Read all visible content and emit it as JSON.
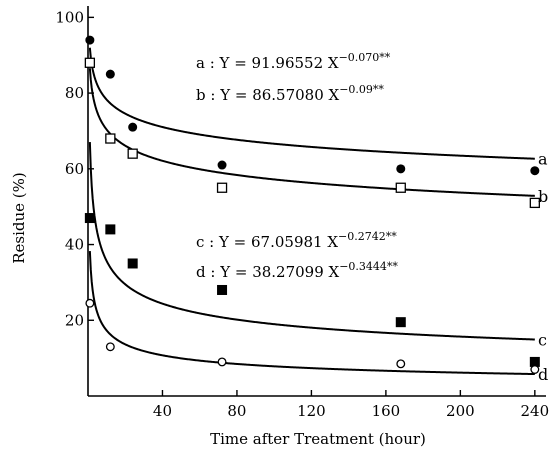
{
  "chart_data": {
    "type": "scatter",
    "xlabel": "Time after Treatment (hour)",
    "ylabel": "Residue (%)",
    "xlim": [
      0,
      246
    ],
    "ylim": [
      0,
      103
    ],
    "xticks": [
      40,
      80,
      120,
      160,
      200,
      240
    ],
    "yticks": [
      20,
      40,
      60,
      80,
      100
    ],
    "grid": false,
    "series": [
      {
        "name": "a",
        "marker": "filled-circle",
        "coef": 91.96552,
        "exp": -0.07,
        "eq_text": "a : Y = 91.96552 X",
        "eq_exp": "−0.070**",
        "points": [
          [
            1,
            94
          ],
          [
            12,
            85
          ],
          [
            24,
            71
          ],
          [
            72,
            61
          ],
          [
            168,
            60
          ],
          [
            240,
            59.5
          ]
        ]
      },
      {
        "name": "b",
        "marker": "open-square",
        "coef": 86.5708,
        "exp": -0.09,
        "eq_text": "b : Y = 86.57080 X",
        "eq_exp": "−0.09**",
        "points": [
          [
            1,
            88
          ],
          [
            12,
            68
          ],
          [
            24,
            64
          ],
          [
            72,
            55
          ],
          [
            168,
            55
          ],
          [
            240,
            51
          ]
        ]
      },
      {
        "name": "c",
        "marker": "filled-square",
        "coef": 67.05981,
        "exp": -0.2742,
        "eq_text": "c : Y = 67.05981 X",
        "eq_exp": "−0.2742**",
        "points": [
          [
            1,
            47
          ],
          [
            12,
            44
          ],
          [
            24,
            35
          ],
          [
            72,
            28
          ],
          [
            168,
            19.5
          ],
          [
            240,
            9
          ]
        ]
      },
      {
        "name": "d",
        "marker": "open-circle",
        "coef": 38.27099,
        "exp": -0.3444,
        "eq_text": "d : Y = 38.27099 X",
        "eq_exp": "−0.3444**",
        "points": [
          [
            1,
            24.5
          ],
          [
            12,
            13
          ],
          [
            72,
            9
          ],
          [
            168,
            8.5
          ],
          [
            240,
            7
          ]
        ]
      }
    ]
  }
}
